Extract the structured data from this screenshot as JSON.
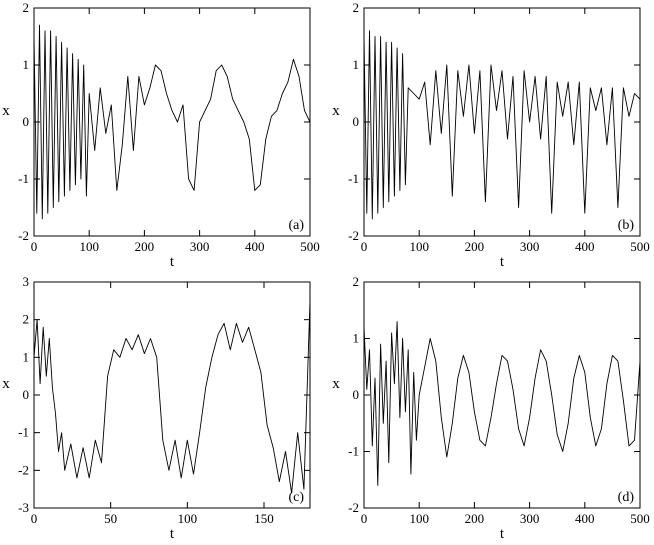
{
  "chart_data": [
    {
      "type": "line",
      "panel_label": "(a)",
      "xlabel": "t",
      "ylabel": "x",
      "xlim": [
        0,
        500
      ],
      "ylim": [
        -2,
        2
      ],
      "xticks": [
        "0",
        "100",
        "200",
        "300",
        "400",
        "500"
      ],
      "yticks": [
        "-2",
        "-1",
        "0",
        "1",
        "2"
      ],
      "grid": false,
      "series": [
        {
          "x": [
            0,
            5,
            10,
            15,
            20,
            25,
            30,
            35,
            40,
            45,
            50,
            55,
            60,
            65,
            70,
            75,
            80,
            85,
            90,
            95,
            100,
            110,
            120,
            130,
            140,
            150,
            160,
            170,
            180,
            190,
            200,
            210,
            220,
            230,
            240,
            250,
            260,
            270,
            280,
            290,
            300,
            310,
            320,
            330,
            340,
            350,
            360,
            370,
            380,
            390,
            400,
            410,
            420,
            430,
            440,
            450,
            460,
            470,
            480,
            490,
            500
          ],
          "y": [
            1.5,
            -1.6,
            1.7,
            -1.7,
            1.6,
            -1.6,
            1.6,
            -1.5,
            1.5,
            -1.4,
            1.4,
            -1.3,
            1.3,
            -1.2,
            1.2,
            -1.1,
            1.1,
            -1.0,
            1.0,
            -1.3,
            0.5,
            -0.5,
            0.6,
            -0.2,
            0.3,
            -1.2,
            -0.4,
            0.8,
            -0.5,
            0.8,
            0.3,
            0.6,
            1.0,
            0.9,
            0.5,
            0.2,
            0.0,
            0.3,
            -1.0,
            -1.2,
            0.0,
            0.2,
            0.4,
            0.9,
            1.0,
            0.8,
            0.4,
            0.2,
            0.0,
            -0.3,
            -1.2,
            -1.1,
            -0.3,
            0.1,
            0.2,
            0.5,
            0.7,
            1.1,
            0.8,
            0.2,
            0.0
          ]
        }
      ]
    },
    {
      "type": "line",
      "panel_label": "(b)",
      "xlabel": "t",
      "ylabel": "x",
      "xlim": [
        0,
        500
      ],
      "ylim": [
        -2,
        2
      ],
      "xticks": [
        "0",
        "100",
        "200",
        "300",
        "400",
        "500"
      ],
      "yticks": [
        "-2",
        "-1",
        "0",
        "1",
        "2"
      ],
      "grid": false,
      "series": [
        {
          "x": [
            0,
            5,
            10,
            15,
            20,
            25,
            30,
            35,
            40,
            45,
            50,
            55,
            60,
            65,
            70,
            75,
            80,
            90,
            100,
            110,
            120,
            130,
            140,
            150,
            160,
            170,
            180,
            190,
            200,
            210,
            220,
            230,
            240,
            250,
            260,
            270,
            280,
            290,
            300,
            310,
            320,
            330,
            340,
            350,
            360,
            370,
            380,
            390,
            400,
            410,
            420,
            430,
            440,
            450,
            460,
            470,
            480,
            490,
            500
          ],
          "y": [
            1.5,
            -1.6,
            1.6,
            -1.7,
            1.5,
            -1.6,
            1.5,
            -1.5,
            1.4,
            -1.4,
            1.4,
            -1.3,
            1.3,
            -1.2,
            1.2,
            -1.1,
            0.6,
            0.5,
            0.4,
            0.7,
            -0.4,
            0.9,
            -0.2,
            1.0,
            -1.3,
            0.9,
            0.1,
            1.0,
            -0.2,
            0.9,
            -1.4,
            1.0,
            0.2,
            0.9,
            -0.3,
            0.8,
            -1.5,
            0.9,
            0.0,
            0.8,
            -0.3,
            0.8,
            -1.6,
            0.7,
            0.1,
            0.7,
            -0.4,
            0.7,
            -1.6,
            0.6,
            0.2,
            0.6,
            -0.4,
            0.6,
            -1.5,
            0.6,
            0.1,
            0.5,
            0.4
          ]
        }
      ]
    },
    {
      "type": "line",
      "panel_label": "(c)",
      "xlabel": "t",
      "ylabel": "x",
      "xlim": [
        0,
        180
      ],
      "ylim": [
        -3,
        3
      ],
      "xticks": [
        "0",
        "50",
        "100",
        "150"
      ],
      "yticks": [
        "-3",
        "-2",
        "-1",
        "0",
        "1",
        "2",
        "3"
      ],
      "grid": false,
      "series": [
        {
          "x": [
            0,
            2,
            4,
            6,
            8,
            10,
            12,
            14,
            16,
            18,
            20,
            24,
            28,
            32,
            36,
            40,
            44,
            48,
            52,
            56,
            60,
            64,
            68,
            72,
            76,
            80,
            84,
            88,
            92,
            96,
            100,
            104,
            108,
            112,
            116,
            120,
            124,
            128,
            132,
            136,
            140,
            144,
            148,
            152,
            156,
            160,
            164,
            168,
            172,
            176,
            180
          ],
          "y": [
            1.0,
            2.0,
            0.3,
            1.8,
            0.5,
            1.5,
            0.2,
            -0.5,
            -1.5,
            -1.0,
            -2.0,
            -1.3,
            -2.2,
            -1.4,
            -2.2,
            -1.2,
            -1.8,
            0.5,
            1.2,
            1.0,
            1.5,
            1.2,
            1.6,
            1.1,
            1.5,
            1.0,
            -1.2,
            -2.0,
            -1.2,
            -2.2,
            -1.2,
            -2.1,
            -1.0,
            0.2,
            1.0,
            1.6,
            1.9,
            1.2,
            1.9,
            1.4,
            1.8,
            1.2,
            0.6,
            -0.8,
            -1.4,
            -2.3,
            -1.5,
            -2.6,
            -1.0,
            -2.5,
            2.5
          ]
        }
      ]
    },
    {
      "type": "line",
      "panel_label": "(d)",
      "xlabel": "t",
      "ylabel": "x",
      "xlim": [
        0,
        500
      ],
      "ylim": [
        -2,
        2
      ],
      "xticks": [
        "0",
        "100",
        "200",
        "300",
        "400",
        "500"
      ],
      "yticks": [
        "-2",
        "-1",
        "0",
        "1",
        "2"
      ],
      "grid": false,
      "series": [
        {
          "x": [
            0,
            5,
            10,
            15,
            20,
            25,
            30,
            35,
            40,
            45,
            50,
            55,
            60,
            65,
            70,
            75,
            80,
            85,
            90,
            95,
            100,
            110,
            120,
            130,
            140,
            150,
            160,
            170,
            180,
            190,
            200,
            210,
            220,
            230,
            240,
            250,
            260,
            270,
            280,
            290,
            300,
            310,
            320,
            330,
            340,
            350,
            360,
            370,
            380,
            390,
            400,
            410,
            420,
            430,
            440,
            450,
            460,
            470,
            480,
            490,
            500
          ],
          "y": [
            1.2,
            0.1,
            0.8,
            -0.9,
            0.3,
            -1.6,
            0.9,
            -0.5,
            0.6,
            -1.2,
            1.1,
            0.2,
            1.3,
            -0.4,
            1.0,
            -0.3,
            0.8,
            -1.4,
            0.4,
            -0.8,
            0.0,
            0.5,
            1.0,
            0.6,
            -0.4,
            -1.1,
            -0.5,
            0.3,
            0.7,
            0.4,
            -0.3,
            -0.8,
            -0.9,
            -0.4,
            0.2,
            0.7,
            0.6,
            0.1,
            -0.6,
            -0.9,
            -0.4,
            0.3,
            0.8,
            0.6,
            0.0,
            -0.7,
            -1.0,
            -0.5,
            0.3,
            0.7,
            0.4,
            -0.4,
            -0.9,
            -0.6,
            0.2,
            0.7,
            0.6,
            -0.1,
            -0.9,
            -0.8,
            0.6
          ]
        }
      ]
    }
  ]
}
